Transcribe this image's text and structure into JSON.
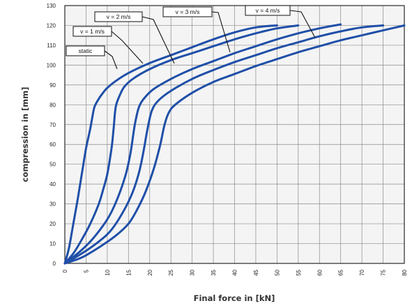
{
  "chart_data": {
    "type": "line",
    "title": "",
    "xlabel": "Final force in [kN]",
    "ylabel": "compression in [mm]",
    "xlim": [
      0,
      80
    ],
    "ylim": [
      0,
      130
    ],
    "xticks": [
      0,
      5,
      10,
      15,
      20,
      25,
      30,
      35,
      40,
      45,
      50,
      55,
      60,
      65,
      70,
      75,
      80
    ],
    "yticks": [
      0,
      10,
      20,
      30,
      40,
      50,
      60,
      70,
      80,
      90,
      100,
      110,
      120,
      130
    ],
    "grid": true,
    "legend": "none",
    "colors": {
      "series": "#1f4fa8",
      "grid": "#8a8a8a",
      "plot_bg": "#f4f4f4",
      "frame": "#2a2a2a"
    },
    "series": [
      {
        "name": "static",
        "points": [
          [
            0,
            0
          ],
          [
            1,
            8
          ],
          [
            2,
            20
          ],
          [
            3,
            32
          ],
          [
            4,
            45
          ],
          [
            5,
            58
          ],
          [
            6,
            68
          ],
          [
            6.5,
            74
          ],
          [
            7,
            79
          ],
          [
            8,
            83
          ],
          [
            9,
            86
          ],
          [
            10,
            88.5
          ],
          [
            12,
            92
          ],
          [
            15,
            96
          ],
          [
            20,
            101
          ],
          [
            25,
            105
          ],
          [
            30,
            109
          ],
          [
            35,
            113
          ],
          [
            40,
            116.5
          ],
          [
            45,
            119
          ],
          [
            50,
            120
          ]
        ]
      },
      {
        "name": "v = 1 m/s",
        "points": [
          [
            0,
            0
          ],
          [
            2,
            5
          ],
          [
            4,
            12
          ],
          [
            6,
            20
          ],
          [
            8,
            30
          ],
          [
            9,
            37
          ],
          [
            10,
            45
          ],
          [
            11,
            58
          ],
          [
            11.5,
            68
          ],
          [
            12,
            79
          ],
          [
            13,
            85
          ],
          [
            14,
            89
          ],
          [
            16,
            93
          ],
          [
            20,
            98
          ],
          [
            25,
            102.5
          ],
          [
            30,
            106
          ],
          [
            35,
            109.5
          ],
          [
            40,
            113
          ],
          [
            45,
            116
          ],
          [
            50,
            118.5
          ],
          [
            55,
            120
          ]
        ]
      },
      {
        "name": "v = 2 m/s",
        "points": [
          [
            0,
            0
          ],
          [
            3,
            5
          ],
          [
            6,
            11
          ],
          [
            9,
            19
          ],
          [
            11,
            26
          ],
          [
            13,
            36
          ],
          [
            14.5,
            46
          ],
          [
            15.5,
            56
          ],
          [
            16.5,
            70
          ],
          [
            17.5,
            79
          ],
          [
            19,
            84
          ],
          [
            21,
            88
          ],
          [
            25,
            93
          ],
          [
            30,
            98
          ],
          [
            35,
            102
          ],
          [
            40,
            106
          ],
          [
            45,
            109.5
          ],
          [
            50,
            113
          ],
          [
            55,
            116
          ],
          [
            60,
            118.5
          ],
          [
            65,
            120.5
          ]
        ]
      },
      {
        "name": "v = 3 m/s",
        "points": [
          [
            0,
            0
          ],
          [
            4,
            5
          ],
          [
            8,
            11
          ],
          [
            11,
            17
          ],
          [
            14,
            27
          ],
          [
            16,
            36
          ],
          [
            17.5,
            46
          ],
          [
            18.5,
            56
          ],
          [
            19.5,
            68
          ],
          [
            20.5,
            77
          ],
          [
            22,
            82
          ],
          [
            25,
            87
          ],
          [
            30,
            93
          ],
          [
            35,
            97.5
          ],
          [
            40,
            101.5
          ],
          [
            45,
            105
          ],
          [
            50,
            108.5
          ],
          [
            55,
            111.5
          ],
          [
            60,
            114.5
          ],
          [
            65,
            117
          ],
          [
            70,
            119
          ],
          [
            75,
            120
          ]
        ]
      },
      {
        "name": "v = 4 m/s",
        "points": [
          [
            0,
            0
          ],
          [
            4,
            3
          ],
          [
            8,
            8
          ],
          [
            12,
            14
          ],
          [
            15,
            20
          ],
          [
            17,
            27
          ],
          [
            19,
            36
          ],
          [
            21,
            48
          ],
          [
            22.5,
            60
          ],
          [
            23.5,
            70
          ],
          [
            24.5,
            76
          ],
          [
            26,
            80
          ],
          [
            30,
            86
          ],
          [
            35,
            91.5
          ],
          [
            40,
            95.5
          ],
          [
            45,
            99.5
          ],
          [
            50,
            103
          ],
          [
            55,
            106.5
          ],
          [
            60,
            109.5
          ],
          [
            65,
            112.5
          ],
          [
            70,
            115
          ],
          [
            75,
            117.5
          ],
          [
            80,
            120
          ]
        ]
      }
    ],
    "annotations": [
      {
        "text": "static",
        "series": "static"
      },
      {
        "text": "v = 1 m/s",
        "series": "v = 1 m/s"
      },
      {
        "text": "v = 2 m/s",
        "series": "v = 2 m/s"
      },
      {
        "text": "v = 3 m/s",
        "series": "v = 3 m/s"
      },
      {
        "text": "v = 4 m/s",
        "series": "v = 4 m/s"
      }
    ]
  }
}
